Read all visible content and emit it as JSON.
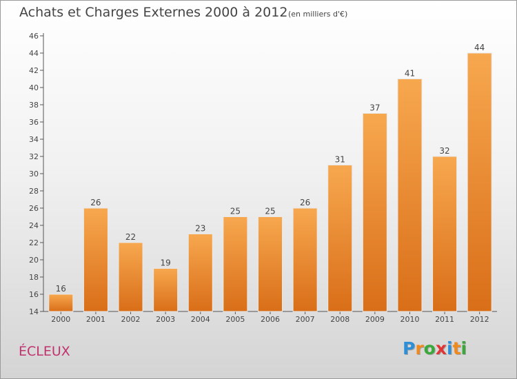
{
  "chart_data": {
    "type": "bar",
    "title": "Achats et Charges Externes 2000 à 2012",
    "subtitle": "(en milliers d'€)",
    "categories": [
      "2000",
      "2001",
      "2002",
      "2003",
      "2004",
      "2005",
      "2006",
      "2007",
      "2008",
      "2009",
      "2010",
      "2011",
      "2012"
    ],
    "values": [
      16,
      26,
      22,
      19,
      23,
      25,
      25,
      26,
      31,
      37,
      41,
      32,
      44
    ],
    "ylim": [
      14,
      46
    ],
    "yticks": [
      14,
      16,
      18,
      20,
      22,
      24,
      26,
      28,
      30,
      32,
      34,
      36,
      38,
      40,
      42,
      44,
      46
    ],
    "grid": false,
    "bar_color_top": "#f7a84f",
    "bar_color_bottom": "#d96e18"
  },
  "location": "ÉCLEUX",
  "logo": {
    "text": "Proxiti",
    "letters": [
      {
        "ch": "P",
        "color": "#2e8fd6"
      },
      {
        "ch": "r",
        "color": "#f08a1c"
      },
      {
        "ch": "o",
        "color": "#3aa83a"
      },
      {
        "ch": "x",
        "color": "#e13535"
      },
      {
        "ch": "i",
        "color": "#2e8fd6"
      },
      {
        "ch": "t",
        "color": "#f08a1c"
      },
      {
        "ch": "i",
        "color": "#3aa83a"
      }
    ]
  }
}
